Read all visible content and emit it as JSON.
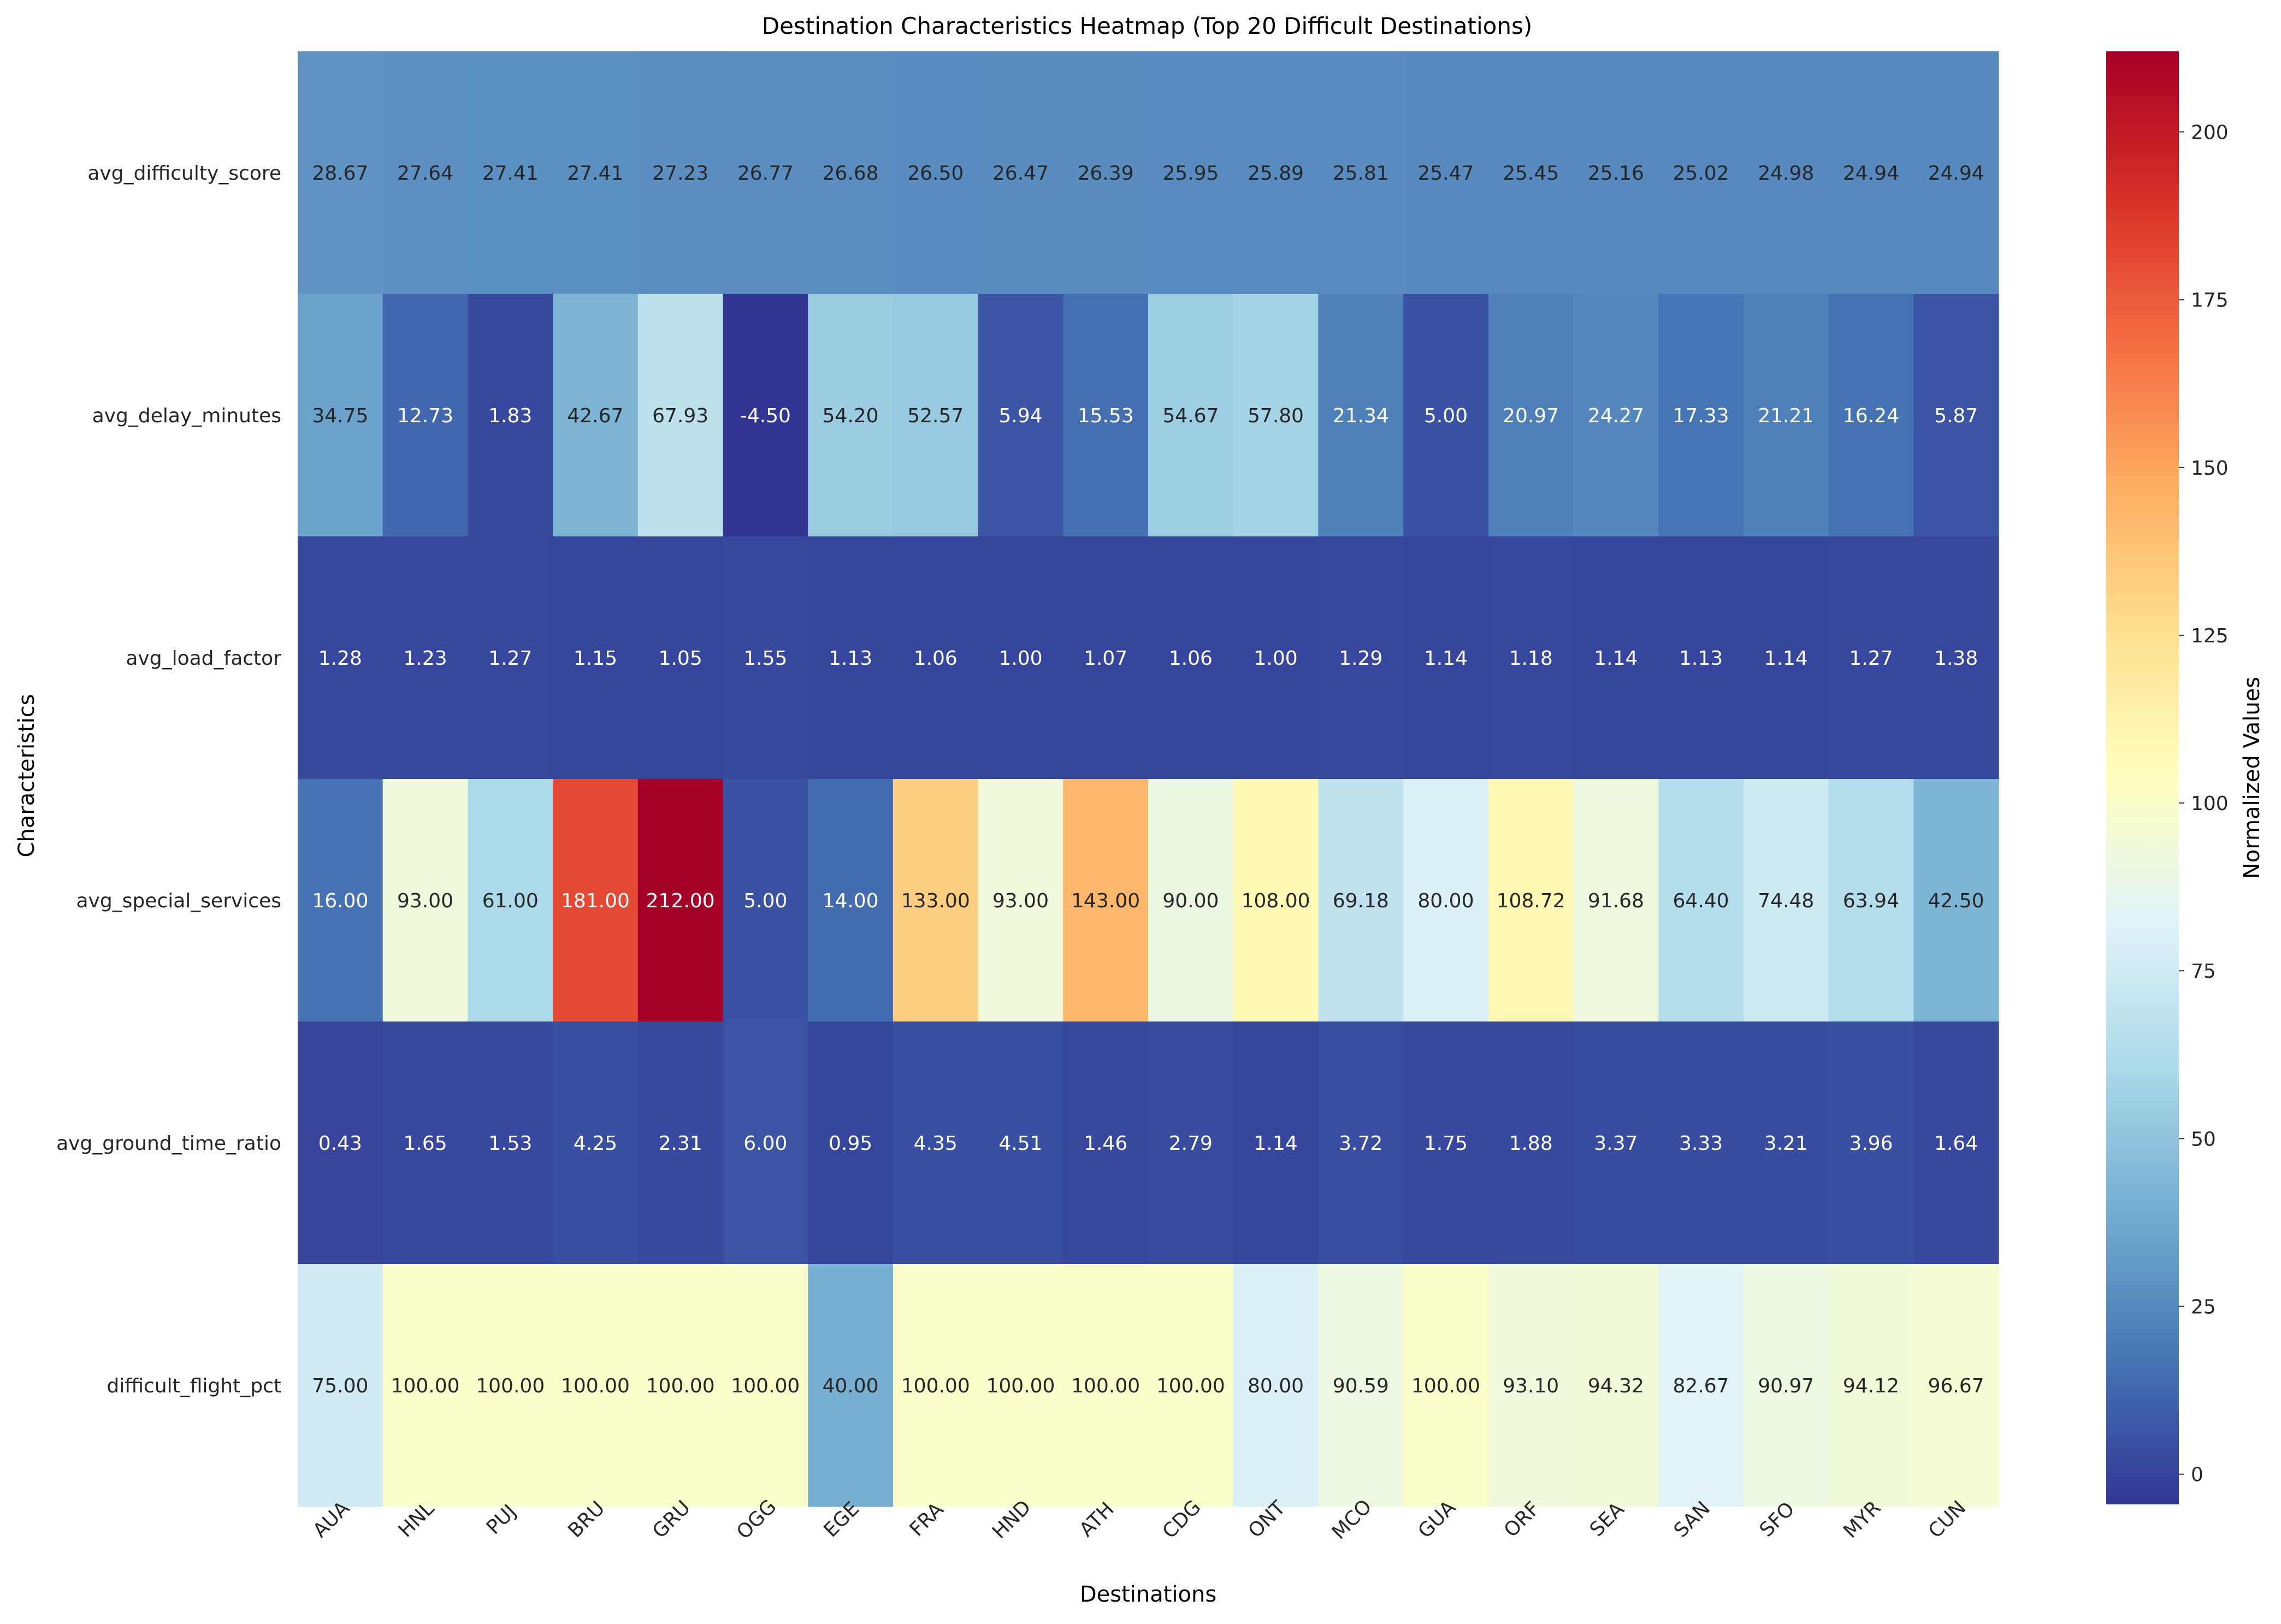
{
  "chart_data": {
    "type": "heatmap",
    "title": "Destination Characteristics Heatmap (Top 20 Difficult Destinations)",
    "xlabel": "Destinations",
    "ylabel": "Characteristics",
    "colorbar_label": "Normalized Values",
    "colormap": "RdYlBu_r",
    "colormap_stops": [
      "#313695",
      "#4575b4",
      "#74add1",
      "#abd9e9",
      "#e0f3f8",
      "#ffffbf",
      "#fee090",
      "#fdae61",
      "#f46d43",
      "#d73027",
      "#a50026"
    ],
    "vmin": -4.5,
    "vmax": 212.0,
    "colorbar_ticks": [
      0,
      25,
      50,
      75,
      100,
      125,
      150,
      175,
      200
    ],
    "destinations": [
      "AUA",
      "HNL",
      "PUJ",
      "BRU",
      "GRU",
      "OGG",
      "EGE",
      "FRA",
      "HND",
      "ATH",
      "CDG",
      "ONT",
      "MCO",
      "GUA",
      "ORF",
      "SEA",
      "SAN",
      "SFO",
      "MYR",
      "CUN"
    ],
    "characteristics": [
      "avg_difficulty_score",
      "avg_delay_minutes",
      "avg_load_factor",
      "avg_special_services",
      "avg_ground_time_ratio",
      "difficult_flight_pct"
    ],
    "values": [
      [
        28.67,
        27.64,
        27.41,
        27.41,
        27.23,
        26.77,
        26.68,
        26.5,
        26.47,
        26.39,
        25.95,
        25.89,
        25.81,
        25.47,
        25.45,
        25.16,
        25.02,
        24.98,
        24.94,
        24.94
      ],
      [
        34.75,
        12.73,
        1.83,
        42.67,
        67.93,
        -4.5,
        54.2,
        52.57,
        5.94,
        15.53,
        54.67,
        57.8,
        21.34,
        5.0,
        20.97,
        24.27,
        17.33,
        21.21,
        16.24,
        5.87
      ],
      [
        1.28,
        1.23,
        1.27,
        1.15,
        1.05,
        1.55,
        1.13,
        1.06,
        1.0,
        1.07,
        1.06,
        1.0,
        1.29,
        1.14,
        1.18,
        1.14,
        1.13,
        1.14,
        1.27,
        1.38
      ],
      [
        16.0,
        93.0,
        61.0,
        181.0,
        212.0,
        5.0,
        14.0,
        133.0,
        93.0,
        143.0,
        90.0,
        108.0,
        69.18,
        80.0,
        108.72,
        91.68,
        64.4,
        74.48,
        63.94,
        42.5
      ],
      [
        0.43,
        1.65,
        1.53,
        4.25,
        2.31,
        6.0,
        0.95,
        4.35,
        4.51,
        1.46,
        2.79,
        1.14,
        3.72,
        1.75,
        1.88,
        3.37,
        3.33,
        3.21,
        3.96,
        1.64
      ],
      [
        75.0,
        100.0,
        100.0,
        100.0,
        100.0,
        100.0,
        40.0,
        100.0,
        100.0,
        100.0,
        100.0,
        80.0,
        90.59,
        100.0,
        93.1,
        94.32,
        82.67,
        90.97,
        94.12,
        96.67
      ]
    ],
    "value_format": "2 decimals",
    "grid": false
  }
}
